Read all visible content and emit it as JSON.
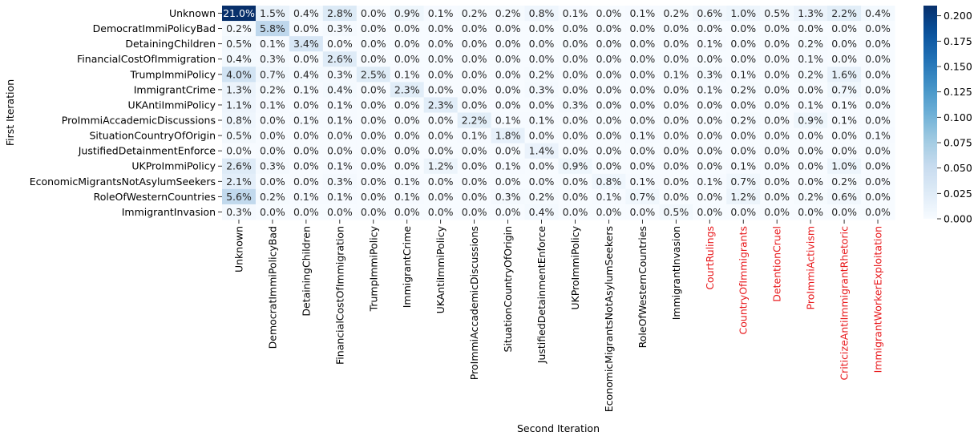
{
  "chart_data": {
    "type": "heatmap",
    "xlabel": "Second Iteration",
    "ylabel": "First Iteration",
    "rows": [
      "Unknown",
      "DemocratImmiPolicyBad",
      "DetainingChildren",
      "FinancialCostOfImmigration",
      "TrumpImmiPolicy",
      "ImmigrantCrime",
      "UKAntiImmiPolicy",
      "ProImmiAccademicDiscussions",
      "SituationCountryOfOrigin",
      "JustifiedDetainmentEnforce",
      "UKProImmiPolicy",
      "EconomicMigrantsNotAsylumSeekers",
      "RoleOfWesternCountries",
      "ImmigrantInvasion"
    ],
    "columns": [
      "Unknown",
      "DemocratImmiPolicyBad",
      "DetainingChildren",
      "FinancialCostOfImmigration",
      "TrumpImmiPolicy",
      "ImmigrantCrime",
      "UKAntiImmiPolicy",
      "ProImmiAccademicDiscussions",
      "SituationCountryOfOrigin",
      "JustifiedDetainmentEnforce",
      "UKProImmiPolicy",
      "EconomicMigrantsNotAsylumSeekers",
      "RoleOfWesternCountries",
      "ImmigrantInvasion",
      "CourtRulings",
      "CountryOfImmigrants",
      "DetentionCruel",
      "ProImmiActivism",
      "CriticizeAntiImmigrantRhetoric",
      "ImmigrantWorkerExploitation"
    ],
    "highlighted_columns": [
      "CourtRulings",
      "CountryOfImmigrants",
      "DetentionCruel",
      "ProImmiActivism",
      "CriticizeAntiImmigrantRhetoric",
      "ImmigrantWorkerExploitation"
    ],
    "values": [
      [
        21.0,
        1.5,
        0.4,
        2.8,
        0.0,
        0.9,
        0.1,
        0.2,
        0.2,
        0.8,
        0.1,
        0.0,
        0.1,
        0.2,
        0.6,
        1.0,
        0.5,
        1.3,
        2.2,
        0.4
      ],
      [
        0.2,
        5.8,
        0.0,
        0.3,
        0.0,
        0.0,
        0.0,
        0.0,
        0.0,
        0.0,
        0.0,
        0.0,
        0.0,
        0.0,
        0.0,
        0.0,
        0.0,
        0.0,
        0.0,
        0.0
      ],
      [
        0.5,
        0.1,
        3.4,
        0.0,
        0.0,
        0.0,
        0.0,
        0.0,
        0.0,
        0.0,
        0.0,
        0.0,
        0.0,
        0.0,
        0.1,
        0.0,
        0.0,
        0.2,
        0.0,
        0.0
      ],
      [
        0.4,
        0.3,
        0.0,
        2.6,
        0.0,
        0.0,
        0.0,
        0.0,
        0.0,
        0.0,
        0.0,
        0.0,
        0.0,
        0.0,
        0.0,
        0.0,
        0.0,
        0.1,
        0.0,
        0.0
      ],
      [
        4.0,
        0.7,
        0.4,
        0.3,
        2.5,
        0.1,
        0.0,
        0.0,
        0.0,
        0.2,
        0.0,
        0.0,
        0.0,
        0.1,
        0.3,
        0.1,
        0.0,
        0.2,
        1.6,
        0.0
      ],
      [
        1.3,
        0.2,
        0.1,
        0.4,
        0.0,
        2.3,
        0.0,
        0.0,
        0.0,
        0.3,
        0.0,
        0.0,
        0.0,
        0.0,
        0.1,
        0.2,
        0.0,
        0.0,
        0.7,
        0.0
      ],
      [
        1.1,
        0.1,
        0.0,
        0.1,
        0.0,
        0.0,
        2.3,
        0.0,
        0.0,
        0.0,
        0.3,
        0.0,
        0.0,
        0.0,
        0.0,
        0.0,
        0.0,
        0.1,
        0.1,
        0.0
      ],
      [
        0.8,
        0.0,
        0.1,
        0.1,
        0.0,
        0.0,
        0.0,
        2.2,
        0.1,
        0.1,
        0.0,
        0.0,
        0.0,
        0.0,
        0.0,
        0.2,
        0.0,
        0.9,
        0.1,
        0.0
      ],
      [
        0.5,
        0.0,
        0.0,
        0.0,
        0.0,
        0.0,
        0.0,
        0.1,
        1.8,
        0.0,
        0.0,
        0.0,
        0.1,
        0.0,
        0.0,
        0.0,
        0.0,
        0.0,
        0.0,
        0.1
      ],
      [
        0.0,
        0.0,
        0.0,
        0.0,
        0.0,
        0.0,
        0.0,
        0.0,
        0.0,
        1.4,
        0.0,
        0.0,
        0.0,
        0.0,
        0.0,
        0.0,
        0.0,
        0.0,
        0.0,
        0.0
      ],
      [
        2.6,
        0.3,
        0.0,
        0.1,
        0.0,
        0.0,
        1.2,
        0.0,
        0.1,
        0.0,
        0.9,
        0.0,
        0.0,
        0.0,
        0.0,
        0.1,
        0.0,
        0.0,
        1.0,
        0.0
      ],
      [
        2.1,
        0.0,
        0.0,
        0.3,
        0.0,
        0.1,
        0.0,
        0.0,
        0.0,
        0.0,
        0.0,
        0.8,
        0.1,
        0.0,
        0.1,
        0.7,
        0.0,
        0.0,
        0.2,
        0.0
      ],
      [
        5.6,
        0.2,
        0.1,
        0.1,
        0.0,
        0.1,
        0.0,
        0.0,
        0.3,
        0.2,
        0.0,
        0.1,
        0.7,
        0.0,
        0.0,
        1.2,
        0.0,
        0.2,
        0.6,
        0.0
      ],
      [
        0.3,
        0.0,
        0.0,
        0.0,
        0.0,
        0.0,
        0.0,
        0.0,
        0.0,
        0.4,
        0.0,
        0.0,
        0.0,
        0.5,
        0.0,
        0.0,
        0.0,
        0.0,
        0.0,
        0.0
      ]
    ],
    "value_format": "percent_1dp",
    "colormap": "Blues",
    "colorbar": {
      "vmin": 0.0,
      "vmax": 0.21,
      "ticks": [
        "0.000",
        "0.025",
        "0.050",
        "0.075",
        "0.100",
        "0.125",
        "0.150",
        "0.175",
        "0.200"
      ]
    },
    "colors": {
      "highlight_label": "#e8191c",
      "default_label": "#000000",
      "light_text": "#ffffff",
      "dark_text": "#262626"
    }
  }
}
